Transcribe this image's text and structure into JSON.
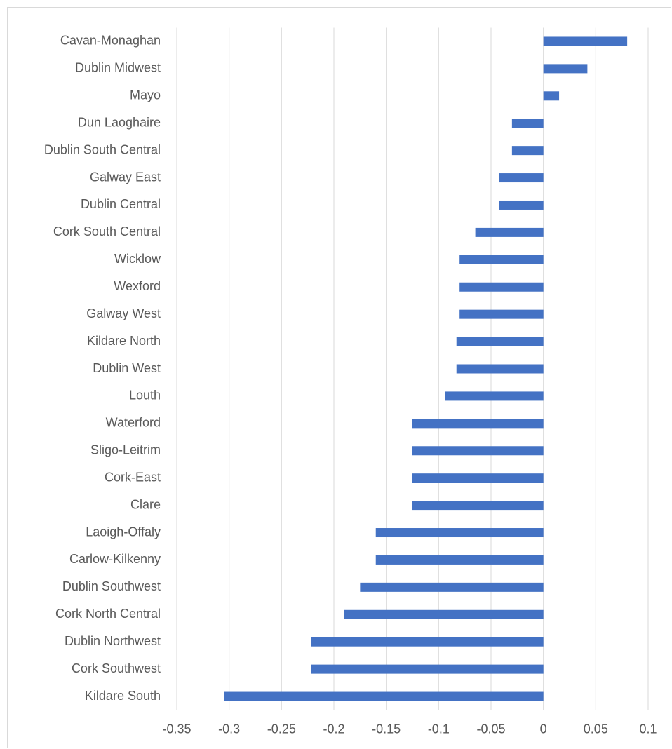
{
  "chart_data": {
    "type": "hbar",
    "categories": [
      "Cavan-Monaghan",
      "Dublin Midwest",
      "Mayo",
      "Dun Laoghaire",
      "Dublin South Central",
      "Galway East",
      "Dublin Central",
      "Cork South Central",
      "Wicklow",
      "Wexford",
      "Galway West",
      "Kildare North",
      "Dublin West",
      "Louth",
      "Waterford",
      "Sligo-Leitrim",
      "Cork-East",
      "Clare",
      "Laoigh-Offaly",
      "Carlow-Kilkenny",
      "Dublin Southwest",
      "Cork North Central",
      "Dublin Northwest",
      "Cork Southwest",
      "Kildare South"
    ],
    "values": [
      0.08,
      0.042,
      0.015,
      -0.03,
      -0.03,
      -0.042,
      -0.042,
      -0.065,
      -0.08,
      -0.08,
      -0.08,
      -0.083,
      -0.083,
      -0.094,
      -0.125,
      -0.125,
      -0.125,
      -0.125,
      -0.16,
      -0.16,
      -0.175,
      -0.19,
      -0.222,
      -0.222,
      -0.305
    ],
    "color": "#4472c4",
    "xlim": [
      -0.35,
      0.1
    ],
    "xticks": [
      -0.35,
      -0.3,
      -0.25,
      -0.2,
      -0.15,
      -0.1,
      -0.05,
      0,
      0.05,
      0.1
    ],
    "grid": true
  }
}
